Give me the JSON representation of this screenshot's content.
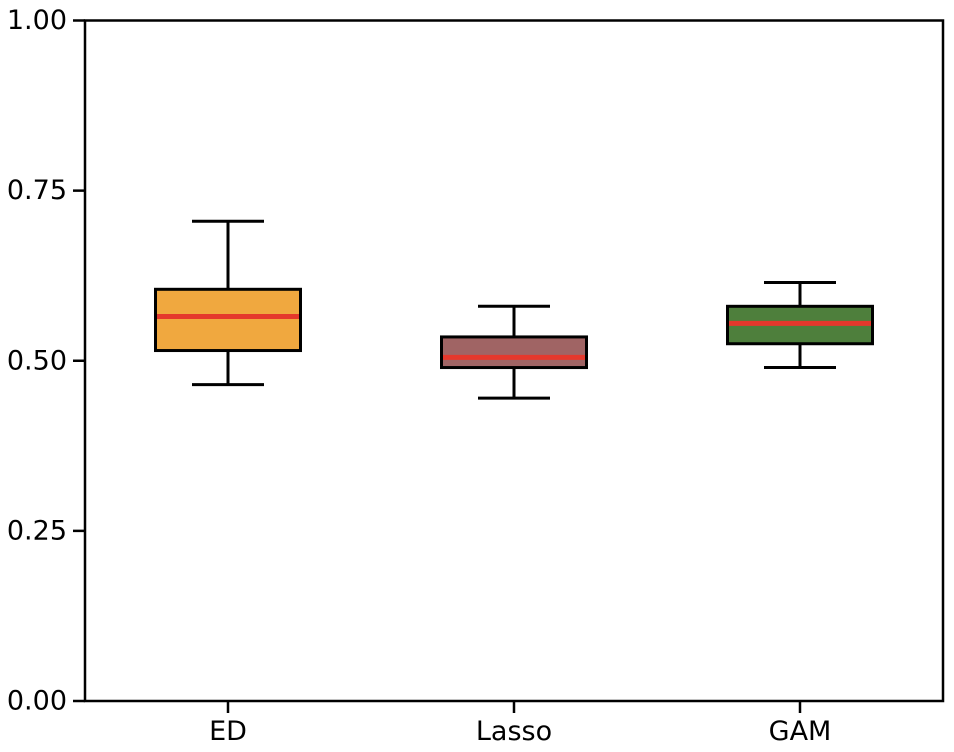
{
  "figure": {
    "background_color": "#ffffff"
  },
  "chart_data": {
    "type": "box",
    "title": "",
    "xlabel": "",
    "ylabel": "",
    "categories": [
      "ED",
      "Lasso",
      "GAM"
    ],
    "series": [
      {
        "name": "ED",
        "whisker_low": 0.465,
        "q1": 0.515,
        "median": 0.565,
        "q3": 0.605,
        "whisker_high": 0.705,
        "fill_color": "#F0A83F"
      },
      {
        "name": "Lasso",
        "whisker_low": 0.445,
        "q1": 0.49,
        "median": 0.505,
        "q3": 0.535,
        "whisker_high": 0.58,
        "fill_color": "#A06464"
      },
      {
        "name": "GAM",
        "whisker_low": 0.49,
        "q1": 0.525,
        "median": 0.555,
        "q3": 0.58,
        "whisker_high": 0.615,
        "fill_color": "#4E7F3C"
      }
    ],
    "ylim": [
      0.0,
      1.0
    ],
    "ytick_values": [
      0.0,
      0.25,
      0.5,
      0.75,
      1.0
    ],
    "ytick_labels": [
      "0.00",
      "0.25",
      "0.50",
      "0.75",
      "1.00"
    ],
    "median_color": "#E5382C",
    "edge_color": "#000000",
    "grid": false,
    "legend_position": "none"
  }
}
